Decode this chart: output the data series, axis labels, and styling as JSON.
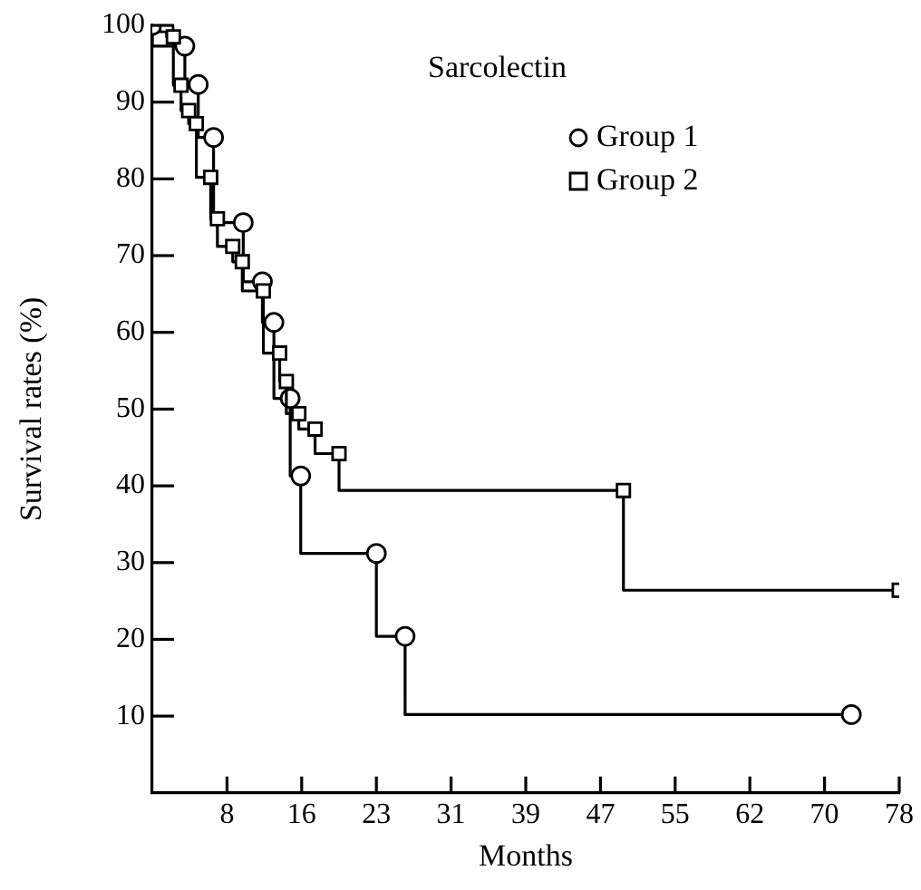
{
  "chart_data": {
    "type": "step",
    "title": "Sarcolectin",
    "xlabel": "Months",
    "ylabel": "Survival rates (%)",
    "xlim": [
      0,
      78
    ],
    "xticks": [
      {
        "value": 7.8,
        "label": "8"
      },
      {
        "value": 15.6,
        "label": "16"
      },
      {
        "value": 23.4,
        "label": "23"
      },
      {
        "value": 31.2,
        "label": "31"
      },
      {
        "value": 39,
        "label": "39"
      },
      {
        "value": 46.8,
        "label": "47"
      },
      {
        "value": 54.6,
        "label": "55"
      },
      {
        "value": 62.4,
        "label": "62"
      },
      {
        "value": 70.2,
        "label": "70"
      },
      {
        "value": 78,
        "label": "78"
      }
    ],
    "ylim": [
      0,
      100
    ],
    "yticks": [
      10,
      20,
      30,
      40,
      50,
      60,
      70,
      80,
      90,
      100
    ],
    "grid": false,
    "legend": "top right",
    "series": [
      {
        "name": "Group 1",
        "color": "#000000",
        "marker": "circle",
        "x": [
          0,
          3.4,
          4.8,
          6.4,
          9.5,
          11.5,
          12.7,
          14.4,
          15.5,
          23.4,
          26.4,
          73
        ],
        "values": [
          100,
          97.3,
          92.3,
          85.4,
          74.3,
          66.6,
          61.3,
          51.4,
          41.3,
          31.2,
          20.4,
          10.2
        ]
      },
      {
        "name": "Group 2",
        "color": "#000000",
        "marker": "square",
        "x": [
          1.5,
          2.2,
          3.0,
          3.8,
          4.6,
          6.1,
          6.8,
          8.4,
          9.4,
          11.6,
          13.3,
          14.0,
          15.3,
          17.0,
          19.5,
          49.2,
          78
        ],
        "values": [
          100,
          98.5,
          92.2,
          88.9,
          87.2,
          80.2,
          74.8,
          71.2,
          69.2,
          65.4,
          57.3,
          53.6,
          49.4,
          47.4,
          44.2,
          39.4,
          26.4
        ]
      }
    ]
  }
}
